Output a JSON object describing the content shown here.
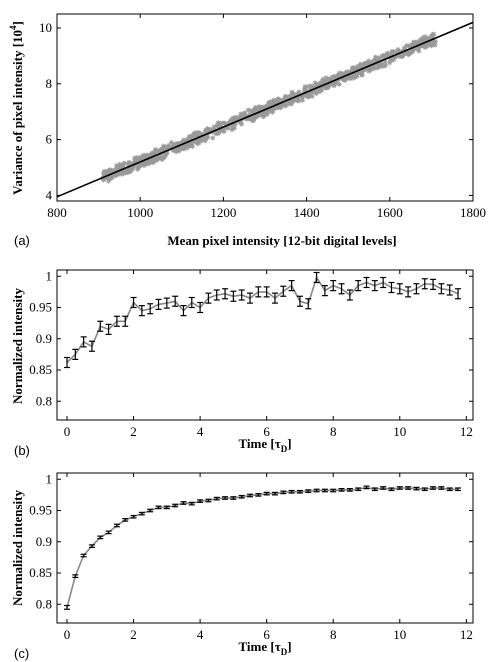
{
  "chart_data": [
    {
      "panel_label": "(a)",
      "type": "scatter",
      "xlabel": "Mean pixel intensity [12-bit digital levels]",
      "ylabel": "Variance of pixel intensity [10",
      "ylabel_sup": "4",
      "ylabel_end": "]",
      "xlim": [
        800,
        1800
      ],
      "ylim": [
        3.8,
        10.5
      ],
      "xticks": [
        800,
        1000,
        1200,
        1400,
        1600,
        1800
      ],
      "yticks": [
        4,
        6,
        8,
        10
      ],
      "xtick_labels": [
        "800",
        "1000",
        "1200",
        "1400",
        "1600",
        "1800"
      ],
      "ytick_labels": [
        "4",
        "6",
        "8",
        "10"
      ],
      "scatter_color": "#999999",
      "fit_color": "#000000",
      "scatter_x_range": [
        910,
        1710
      ],
      "fit_line": {
        "x": [
          800,
          1800
        ],
        "y": [
          3.95,
          10.2
        ]
      }
    },
    {
      "panel_label": "(b)",
      "type": "line",
      "xlabel": "Time [τ",
      "xlabel_sub": "D",
      "xlabel_end": "]",
      "ylabel": "Normalized intensity",
      "xlim": [
        -0.3,
        12.2
      ],
      "ylim": [
        0.77,
        1.01
      ],
      "xticks": [
        0,
        2,
        4,
        6,
        8,
        10,
        12
      ],
      "yticks": [
        0.8,
        0.85,
        0.9,
        0.95,
        1
      ],
      "xtick_labels": [
        "0",
        "2",
        "4",
        "6",
        "8",
        "10",
        "12"
      ],
      "ytick_labels": [
        "0.8",
        "0.85",
        "0.9",
        "0.95",
        "1"
      ],
      "line_color": "#888888",
      "errorbar_color": "#000000",
      "series": [
        {
          "x": [
            0,
            0.25,
            0.5,
            0.75,
            1,
            1.25,
            1.5,
            1.75,
            2,
            2.25,
            2.5,
            2.75,
            3,
            3.25,
            3.5,
            3.75,
            4,
            4.25,
            4.5,
            4.75,
            5,
            5.25,
            5.5,
            5.75,
            6,
            6.25,
            6.5,
            6.75,
            7,
            7.25,
            7.5,
            7.75,
            8,
            8.25,
            8.5,
            8.75,
            9,
            9.25,
            9.5,
            9.75,
            10,
            10.25,
            10.5,
            10.75,
            11,
            11.25,
            11.5,
            11.75
          ],
          "y": [
            0.862,
            0.875,
            0.895,
            0.888,
            0.92,
            0.915,
            0.928,
            0.928,
            0.958,
            0.945,
            0.948,
            0.955,
            0.957,
            0.96,
            0.945,
            0.958,
            0.95,
            0.965,
            0.97,
            0.972,
            0.968,
            0.97,
            0.965,
            0.975,
            0.975,
            0.965,
            0.976,
            0.985,
            0.96,
            0.956,
            0.998,
            0.977,
            0.985,
            0.98,
            0.97,
            0.985,
            0.99,
            0.985,
            0.99,
            0.982,
            0.98,
            0.975,
            0.98,
            0.988,
            0.987,
            0.98,
            0.978,
            0.972
          ],
          "err": [
            0.008,
            0.008,
            0.008,
            0.008,
            0.008,
            0.008,
            0.008,
            0.008,
            0.008,
            0.008,
            0.008,
            0.008,
            0.008,
            0.008,
            0.008,
            0.008,
            0.008,
            0.008,
            0.008,
            0.008,
            0.008,
            0.008,
            0.008,
            0.008,
            0.008,
            0.008,
            0.008,
            0.008,
            0.008,
            0.008,
            0.008,
            0.008,
            0.008,
            0.008,
            0.008,
            0.008,
            0.008,
            0.008,
            0.008,
            0.008,
            0.008,
            0.008,
            0.008,
            0.008,
            0.008,
            0.008,
            0.008,
            0.008
          ]
        }
      ]
    },
    {
      "panel_label": "(c)",
      "type": "line",
      "xlabel": "Time [τ",
      "xlabel_sub": "D",
      "xlabel_end": "]",
      "ylabel": "Normalized intensity",
      "xlim": [
        -0.3,
        12.2
      ],
      "ylim": [
        0.77,
        1.01
      ],
      "xticks": [
        0,
        2,
        4,
        6,
        8,
        10,
        12
      ],
      "yticks": [
        0.8,
        0.85,
        0.9,
        0.95,
        1
      ],
      "xtick_labels": [
        "0",
        "2",
        "4",
        "6",
        "8",
        "10",
        "12"
      ],
      "ytick_labels": [
        "0.8",
        "0.85",
        "0.9",
        "0.95",
        "1"
      ],
      "line_color": "#888888",
      "errorbar_color": "#000000",
      "series": [
        {
          "x": [
            0,
            0.25,
            0.5,
            0.75,
            1,
            1.25,
            1.5,
            1.75,
            2,
            2.25,
            2.5,
            2.75,
            3,
            3.25,
            3.5,
            3.75,
            4,
            4.25,
            4.5,
            4.75,
            5,
            5.25,
            5.5,
            5.75,
            6,
            6.25,
            6.5,
            6.75,
            7,
            7.25,
            7.5,
            7.75,
            8,
            8.25,
            8.5,
            8.75,
            9,
            9.25,
            9.5,
            9.75,
            10,
            10.25,
            10.5,
            10.75,
            11,
            11.25,
            11.5,
            11.75
          ],
          "y": [
            0.795,
            0.845,
            0.878,
            0.893,
            0.907,
            0.915,
            0.926,
            0.935,
            0.94,
            0.945,
            0.95,
            0.955,
            0.955,
            0.958,
            0.962,
            0.961,
            0.965,
            0.966,
            0.969,
            0.97,
            0.97,
            0.972,
            0.974,
            0.975,
            0.977,
            0.977,
            0.979,
            0.98,
            0.98,
            0.981,
            0.982,
            0.982,
            0.982,
            0.983,
            0.983,
            0.984,
            0.987,
            0.984,
            0.986,
            0.984,
            0.986,
            0.986,
            0.985,
            0.984,
            0.986,
            0.986,
            0.984,
            0.984
          ],
          "err": [
            0.003,
            0.002,
            0.002,
            0.002,
            0.002,
            0.002,
            0.002,
            0.002,
            0.002,
            0.002,
            0.002,
            0.002,
            0.002,
            0.002,
            0.002,
            0.002,
            0.002,
            0.002,
            0.002,
            0.002,
            0.002,
            0.002,
            0.002,
            0.002,
            0.002,
            0.002,
            0.002,
            0.002,
            0.002,
            0.002,
            0.002,
            0.002,
            0.002,
            0.002,
            0.002,
            0.002,
            0.002,
            0.002,
            0.002,
            0.002,
            0.002,
            0.002,
            0.002,
            0.002,
            0.002,
            0.002,
            0.002,
            0.002
          ]
        }
      ]
    }
  ]
}
